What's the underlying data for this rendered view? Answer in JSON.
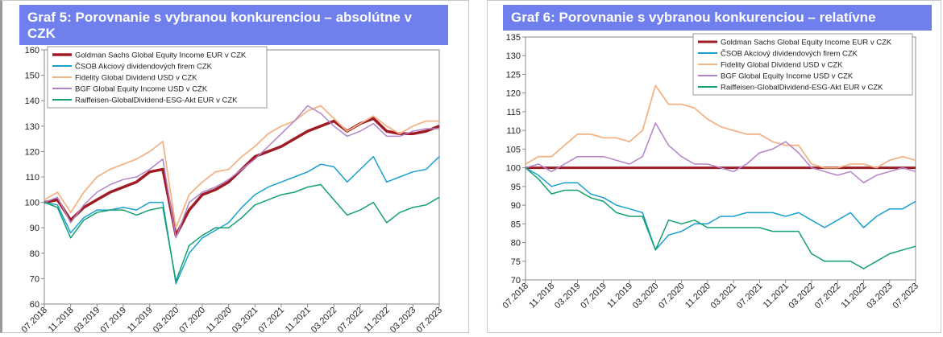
{
  "chart_data": [
    {
      "type": "line",
      "title": "Graf 5: Porovnanie s vybranou konkurenciou – absolútne v CZK",
      "x": [
        "07.2018",
        "09.2018",
        "11.2018",
        "01.2019",
        "03.2019",
        "05.2019",
        "07.2019",
        "09.2019",
        "11.2019",
        "01.2020",
        "03.2020",
        "05.2020",
        "07.2020",
        "09.2020",
        "11.2020",
        "01.2021",
        "03.2021",
        "05.2021",
        "07.2021",
        "09.2021",
        "11.2021",
        "01.2022",
        "03.2022",
        "05.2022",
        "07.2022",
        "09.2022",
        "11.2022",
        "01.2023",
        "03.2023",
        "05.2023",
        "07.2023"
      ],
      "xlim": [
        "07.2018",
        "07.2023"
      ],
      "xticks": [
        "07.2018",
        "11.2018",
        "03.2019",
        "07.2019",
        "11.2019",
        "03.2020",
        "07.2020",
        "11.2020",
        "03.2021",
        "07.2021",
        "11.2021",
        "03.2022",
        "07.2022",
        "11.2022",
        "03.2023",
        "07.2023"
      ],
      "ylim": [
        60,
        160
      ],
      "yticks": [
        60,
        70,
        80,
        90,
        100,
        110,
        120,
        130,
        140,
        150,
        160
      ],
      "legend": "upper left",
      "series": [
        {
          "name": "Goldman Sachs Global Equity Income EUR v CZK",
          "color": "#a01c24",
          "width": 3.5,
          "values": [
            100,
            101,
            93,
            98,
            101,
            104,
            106,
            108,
            112,
            113,
            87,
            97,
            103,
            105,
            108,
            113,
            118,
            120,
            122,
            125,
            128,
            130,
            132,
            128,
            131,
            133,
            128,
            127,
            127,
            128,
            130
          ]
        },
        {
          "name": "ČSOB Akciový dividendových firem CZK",
          "color": "#1aa0d0",
          "width": 1.5,
          "values": [
            100,
            99,
            88,
            94,
            97,
            97,
            98,
            97,
            100,
            100,
            68,
            80,
            86,
            89,
            92,
            98,
            103,
            106,
            108,
            110,
            112,
            115,
            114,
            108,
            113,
            118,
            108,
            110,
            112,
            113,
            118
          ]
        },
        {
          "name": "Fidelity Global Dividend USD v CZK",
          "color": "#f2b487",
          "width": 1.8,
          "values": [
            101,
            104,
            96,
            104,
            110,
            113,
            115,
            117,
            120,
            124,
            90,
            103,
            108,
            112,
            113,
            118,
            122,
            127,
            130,
            132,
            136,
            138,
            133,
            128,
            131,
            134,
            130,
            127,
            130,
            132,
            132
          ]
        },
        {
          "name": "BGF Global Equity Income USD v CZK",
          "color": "#b283c9",
          "width": 1.5,
          "values": [
            100,
            102,
            92,
            99,
            104,
            107,
            109,
            110,
            113,
            117,
            86,
            100,
            104,
            106,
            109,
            113,
            117,
            122,
            127,
            132,
            138,
            135,
            130,
            126,
            128,
            131,
            126,
            126,
            128,
            129,
            129
          ]
        },
        {
          "name": "Raiffeisen-GlobalDividend-ESG-Akt EUR v CZK",
          "color": "#14a070",
          "width": 1.5,
          "values": [
            100,
            98,
            86,
            93,
            96,
            97,
            97,
            95,
            97,
            98,
            69,
            83,
            87,
            90,
            90,
            94,
            99,
            101,
            103,
            104,
            106,
            107,
            101,
            95,
            97,
            100,
            92,
            96,
            98,
            99,
            102
          ]
        }
      ]
    },
    {
      "type": "line",
      "title": "Graf 6: Porovnanie s vybranou konkurenciou – relatívne",
      "x": [
        "07.2018",
        "09.2018",
        "11.2018",
        "01.2019",
        "03.2019",
        "05.2019",
        "07.2019",
        "09.2019",
        "11.2019",
        "01.2020",
        "03.2020",
        "05.2020",
        "07.2020",
        "09.2020",
        "11.2020",
        "01.2021",
        "03.2021",
        "05.2021",
        "07.2021",
        "09.2021",
        "11.2021",
        "01.2022",
        "03.2022",
        "05.2022",
        "07.2022",
        "09.2022",
        "11.2022",
        "01.2023",
        "03.2023",
        "05.2023",
        "07.2023"
      ],
      "xlim": [
        "07.2018",
        "07.2023"
      ],
      "xticks": [
        "07.2018",
        "11.2018",
        "03.2019",
        "07.2019",
        "11.2019",
        "03.2020",
        "07.2020",
        "11.2020",
        "03.2021",
        "07.2021",
        "11.2021",
        "03.2022",
        "07.2022",
        "11.2022",
        "03.2023",
        "07.2023"
      ],
      "ylim": [
        70,
        135
      ],
      "yticks": [
        70,
        75,
        80,
        85,
        90,
        95,
        100,
        105,
        110,
        115,
        120,
        125,
        130,
        135
      ],
      "legend": "upper right",
      "series": [
        {
          "name": "Goldman Sachs Global Equity Income EUR v CZK",
          "color": "#a01c24",
          "width": 3,
          "values": [
            100,
            100,
            100,
            100,
            100,
            100,
            100,
            100,
            100,
            100,
            100,
            100,
            100,
            100,
            100,
            100,
            100,
            100,
            100,
            100,
            100,
            100,
            100,
            100,
            100,
            100,
            100,
            100,
            100,
            100,
            100
          ]
        },
        {
          "name": "ČSOB Akciový dividendových firem CZK",
          "color": "#1aa0d0",
          "width": 1.5,
          "values": [
            100,
            98,
            95,
            96,
            96,
            93,
            92,
            90,
            89,
            88,
            78,
            82,
            83,
            85,
            85,
            87,
            87,
            88,
            88,
            88,
            87,
            88,
            86,
            84,
            86,
            88,
            84,
            87,
            89,
            89,
            91
          ]
        },
        {
          "name": "Fidelity Global Dividend USD v CZK",
          "color": "#f2b487",
          "width": 1.8,
          "values": [
            101,
            103,
            103,
            106,
            109,
            109,
            108,
            108,
            107,
            110,
            122,
            117,
            117,
            116,
            113,
            111,
            110,
            109,
            109,
            107,
            106,
            106,
            101,
            100,
            100,
            101,
            101,
            100,
            102,
            103,
            102
          ]
        },
        {
          "name": "BGF Global Equity Income USD v CZK",
          "color": "#b283c9",
          "width": 1.5,
          "values": [
            100,
            101,
            99,
            101,
            103,
            103,
            103,
            102,
            101,
            103,
            112,
            106,
            103,
            101,
            101,
            100,
            99,
            101,
            104,
            105,
            107,
            104,
            100,
            99,
            98,
            99,
            96,
            98,
            99,
            100,
            99
          ]
        },
        {
          "name": "Raiffeisen-GlobalDividend-ESG-Akt EUR v CZK",
          "color": "#14a070",
          "width": 1.5,
          "values": [
            100,
            97,
            93,
            94,
            94,
            92,
            91,
            88,
            87,
            87,
            78,
            86,
            85,
            86,
            84,
            84,
            84,
            84,
            84,
            83,
            83,
            83,
            77,
            75,
            75,
            75,
            73,
            75,
            77,
            78,
            79
          ]
        }
      ]
    }
  ]
}
